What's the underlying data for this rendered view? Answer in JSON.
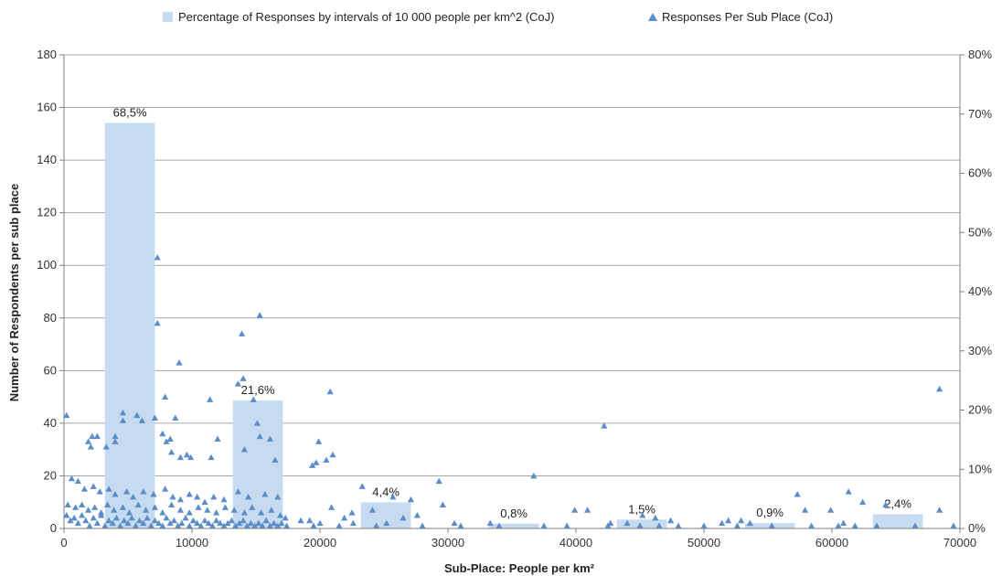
{
  "chart_data": {
    "type": "bar+scatter",
    "xlabel": "Sub-Place: People per km²",
    "ylabel_left": "Number of Respondents per sub place",
    "ylabel_right": "",
    "xlim": [
      0,
      70000
    ],
    "ylim_left": [
      0,
      180
    ],
    "ylim_right": [
      0,
      0.8
    ],
    "x_ticks": [
      "0",
      "10000",
      "20000",
      "30000",
      "40000",
      "50000",
      "60000",
      "70000"
    ],
    "y_left_ticks": [
      "0",
      "20",
      "40",
      "60",
      "80",
      "100",
      "120",
      "140",
      "160",
      "180"
    ],
    "y_right_ticks": [
      "0%",
      "10%",
      "20%",
      "30%",
      "40%",
      "50%",
      "60%",
      "70%",
      "80%"
    ],
    "grid": "horizontal",
    "legend_position": "top",
    "legend": [
      {
        "label": "Percentage of Responses by intervals of 10 000 people per km^2 (CoJ)",
        "marker": "square"
      },
      {
        "label": "Responses Per Sub Place (CoJ)",
        "marker": "triangle"
      }
    ],
    "colors": {
      "bars": "#c6dbef",
      "points": "#5b8ec9",
      "grid": "#a6a6a6",
      "axis": "#7f7f7f"
    },
    "bars": {
      "name": "Percentage of Responses by intervals of 10 000 people per km^2 (CoJ)",
      "axis": "right",
      "x_start": [
        3200,
        13200,
        23200,
        33200,
        43200,
        53200,
        63200
      ],
      "x_end": [
        7100,
        17100,
        27100,
        37100,
        47100,
        57100,
        67100
      ],
      "values": [
        0.685,
        0.216,
        0.044,
        0.008,
        0.015,
        0.009,
        0.024
      ],
      "labels": [
        "68,5%",
        "21,6%",
        "4,4%",
        "0,8%",
        "1,5%",
        "0,9%",
        "2,4%"
      ]
    },
    "scatter": {
      "name": "Responses Per Sub Place (CoJ)",
      "axis": "left",
      "points": [
        [
          7300,
          103
        ],
        [
          15300,
          81
        ],
        [
          13900,
          74
        ],
        [
          7300,
          78
        ],
        [
          9000,
          63
        ],
        [
          13600,
          55
        ],
        [
          14000,
          57
        ],
        [
          20800,
          52
        ],
        [
          68400,
          53
        ],
        [
          7900,
          50
        ],
        [
          11400,
          49
        ],
        [
          14800,
          49
        ],
        [
          4600,
          44
        ],
        [
          5700,
          43
        ],
        [
          6100,
          41
        ],
        [
          15100,
          40
        ],
        [
          4600,
          41
        ],
        [
          8700,
          42
        ],
        [
          7100,
          42
        ],
        [
          42200,
          39
        ],
        [
          200,
          43
        ],
        [
          4000,
          35
        ],
        [
          1900,
          33
        ],
        [
          2200,
          35
        ],
        [
          2600,
          35
        ],
        [
          2100,
          31
        ],
        [
          3300,
          31
        ],
        [
          4000,
          33
        ],
        [
          7700,
          36
        ],
        [
          8000,
          33
        ],
        [
          8300,
          34
        ],
        [
          8400,
          29
        ],
        [
          9100,
          27
        ],
        [
          9600,
          28
        ],
        [
          9900,
          27
        ],
        [
          11500,
          27
        ],
        [
          12000,
          34
        ],
        [
          14100,
          30
        ],
        [
          15300,
          35
        ],
        [
          16100,
          34
        ],
        [
          16500,
          26
        ],
        [
          19900,
          33
        ],
        [
          20500,
          26
        ],
        [
          21000,
          28
        ],
        [
          19400,
          24
        ],
        [
          19700,
          25
        ],
        [
          29300,
          18
        ],
        [
          36700,
          20
        ],
        [
          23300,
          16
        ],
        [
          25700,
          12
        ],
        [
          27100,
          11
        ],
        [
          600,
          19
        ],
        [
          1100,
          18
        ],
        [
          1600,
          15
        ],
        [
          2300,
          16
        ],
        [
          2800,
          14
        ],
        [
          3500,
          15
        ],
        [
          4000,
          13
        ],
        [
          4900,
          14
        ],
        [
          5400,
          12
        ],
        [
          6200,
          14
        ],
        [
          7000,
          13
        ],
        [
          7900,
          15
        ],
        [
          8500,
          12
        ],
        [
          9100,
          11
        ],
        [
          9800,
          13
        ],
        [
          10400,
          12
        ],
        [
          11000,
          10
        ],
        [
          11700,
          12
        ],
        [
          12500,
          11
        ],
        [
          13600,
          14
        ],
        [
          14400,
          12
        ],
        [
          15700,
          13
        ],
        [
          16700,
          12
        ],
        [
          300,
          9
        ],
        [
          900,
          8
        ],
        [
          1400,
          9
        ],
        [
          1900,
          7
        ],
        [
          2400,
          8
        ],
        [
          2900,
          6
        ],
        [
          3400,
          9
        ],
        [
          3900,
          7
        ],
        [
          4600,
          8
        ],
        [
          5100,
          6
        ],
        [
          5800,
          9
        ],
        [
          6400,
          7
        ],
        [
          7100,
          8
        ],
        [
          7700,
          6
        ],
        [
          8400,
          9
        ],
        [
          9100,
          7
        ],
        [
          9800,
          6
        ],
        [
          10500,
          8
        ],
        [
          11200,
          7
        ],
        [
          11900,
          6
        ],
        [
          12600,
          8
        ],
        [
          13300,
          7
        ],
        [
          14100,
          6
        ],
        [
          14700,
          8
        ],
        [
          15400,
          6
        ],
        [
          16200,
          7
        ],
        [
          16900,
          5
        ],
        [
          17300,
          4
        ],
        [
          19200,
          3
        ],
        [
          20900,
          8
        ],
        [
          21900,
          4
        ],
        [
          22500,
          6
        ],
        [
          24100,
          7
        ],
        [
          26500,
          4
        ],
        [
          29600,
          9
        ],
        [
          27600,
          5
        ],
        [
          39900,
          7
        ],
        [
          40900,
          7
        ],
        [
          45200,
          5
        ],
        [
          46200,
          4
        ],
        [
          47400,
          3
        ],
        [
          51900,
          3
        ],
        [
          52900,
          3
        ],
        [
          57300,
          13
        ],
        [
          57900,
          7
        ],
        [
          59900,
          7
        ],
        [
          61300,
          14
        ],
        [
          62400,
          10
        ],
        [
          64200,
          9
        ],
        [
          68400,
          7
        ],
        [
          60900,
          2
        ],
        [
          200,
          5
        ],
        [
          500,
          3
        ],
        [
          800,
          4
        ],
        [
          1100,
          2
        ],
        [
          1400,
          5
        ],
        [
          1700,
          3
        ],
        [
          2000,
          1
        ],
        [
          2300,
          4
        ],
        [
          2600,
          2
        ],
        [
          2900,
          5
        ],
        [
          3200,
          1
        ],
        [
          3500,
          3
        ],
        [
          3800,
          2
        ],
        [
          4100,
          4
        ],
        [
          4400,
          1
        ],
        [
          4700,
          3
        ],
        [
          5000,
          2
        ],
        [
          5300,
          4
        ],
        [
          5600,
          1
        ],
        [
          5900,
          3
        ],
        [
          6200,
          2
        ],
        [
          6500,
          4
        ],
        [
          6800,
          1
        ],
        [
          7100,
          3
        ],
        [
          7400,
          2
        ],
        [
          7700,
          1
        ],
        [
          8000,
          4
        ],
        [
          8300,
          2
        ],
        [
          8600,
          3
        ],
        [
          8900,
          1
        ],
        [
          9200,
          2
        ],
        [
          9500,
          4
        ],
        [
          9800,
          1
        ],
        [
          10100,
          3
        ],
        [
          10400,
          2
        ],
        [
          10700,
          1
        ],
        [
          11000,
          3
        ],
        [
          11300,
          2
        ],
        [
          11600,
          1
        ],
        [
          11900,
          3
        ],
        [
          12200,
          2
        ],
        [
          12500,
          1
        ],
        [
          12800,
          2
        ],
        [
          13100,
          3
        ],
        [
          13400,
          1
        ],
        [
          13700,
          2
        ],
        [
          14000,
          3
        ],
        [
          14300,
          1
        ],
        [
          14600,
          2
        ],
        [
          14900,
          1
        ],
        [
          15200,
          2
        ],
        [
          15500,
          1
        ],
        [
          15800,
          3
        ],
        [
          16100,
          1
        ],
        [
          16400,
          2
        ],
        [
          16700,
          1
        ],
        [
          17000,
          2
        ],
        [
          17400,
          1
        ],
        [
          18500,
          3
        ],
        [
          19500,
          1
        ],
        [
          20000,
          2
        ],
        [
          21500,
          1
        ],
        [
          22600,
          2
        ],
        [
          24400,
          1
        ],
        [
          25200,
          2
        ],
        [
          28000,
          1
        ],
        [
          30500,
          2
        ],
        [
          31000,
          1
        ],
        [
          33300,
          2
        ],
        [
          34000,
          1
        ],
        [
          37500,
          1
        ],
        [
          39300,
          1
        ],
        [
          42500,
          1
        ],
        [
          42700,
          2
        ],
        [
          44000,
          2
        ],
        [
          45000,
          1
        ],
        [
          46500,
          1
        ],
        [
          48000,
          1
        ],
        [
          50000,
          1
        ],
        [
          51400,
          2
        ],
        [
          52600,
          1
        ],
        [
          53600,
          2
        ],
        [
          55300,
          1
        ],
        [
          58400,
          1
        ],
        [
          60500,
          1
        ],
        [
          61800,
          1
        ],
        [
          63500,
          1
        ],
        [
          66500,
          1
        ],
        [
          69500,
          1
        ]
      ]
    }
  }
}
